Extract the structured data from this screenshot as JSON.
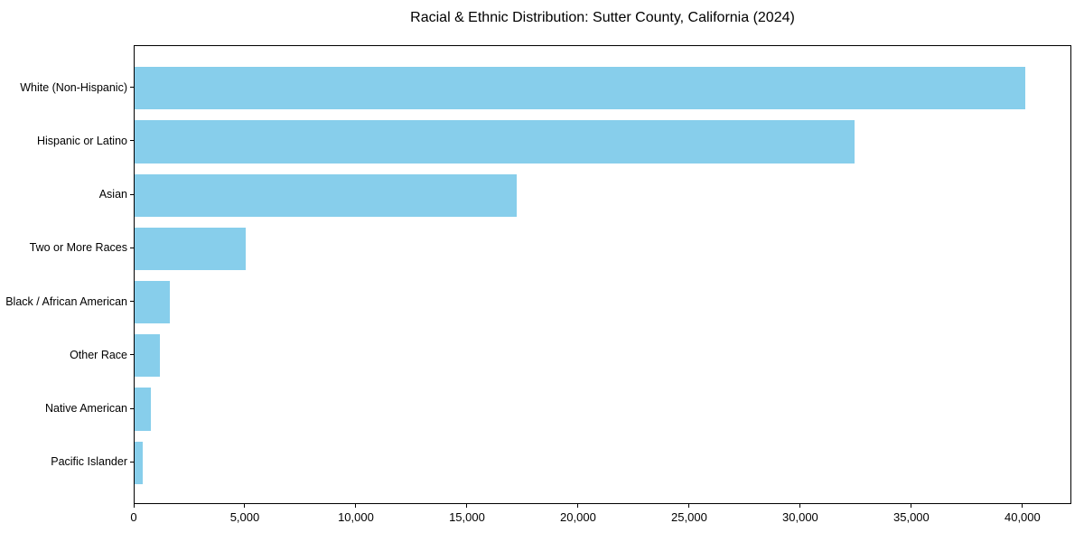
{
  "chart_data": {
    "type": "bar",
    "orientation": "horizontal",
    "title": "Racial & Ethnic Distribution: Sutter County, California (2024)",
    "categories": [
      "White (Non-Hispanic)",
      "Hispanic or Latino",
      "Asian",
      "Two or More Races",
      "Black / African American",
      "Other Race",
      "Native American",
      "Pacific Islander"
    ],
    "values": [
      40150,
      32450,
      17250,
      5000,
      1600,
      1150,
      730,
      350
    ],
    "xlabel": "",
    "ylabel": "",
    "xlim": [
      0,
      42200
    ],
    "x_ticks": [
      0,
      5000,
      10000,
      15000,
      20000,
      25000,
      30000,
      35000,
      40000
    ],
    "x_tick_labels": [
      "0",
      "5,000",
      "10,000",
      "15,000",
      "20,000",
      "25,000",
      "30,000",
      "35,000",
      "40,000"
    ],
    "grid": false,
    "legend": "none",
    "bar_color": "#87CEEB",
    "background_color": "#ffffff",
    "text_color": "#000000",
    "spine_color": "#000000"
  }
}
